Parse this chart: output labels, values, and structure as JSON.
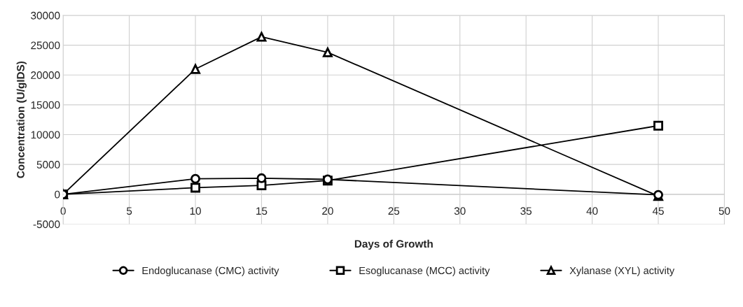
{
  "chart_data": {
    "type": "line",
    "xlabel": "Days of Growth",
    "ylabel": "Concentration (U/gIDS)",
    "x": [
      0,
      10,
      15,
      20,
      45
    ],
    "series": [
      {
        "name": "Endoglucanase (CMC) activity",
        "color": "#000000",
        "marker": "circle",
        "values": [
          0,
          2600,
          2700,
          2500,
          -100
        ]
      },
      {
        "name": "Esoglucanase (MCC) activity",
        "color": "#000000",
        "marker": "square",
        "values": [
          0,
          1100,
          1500,
          2300,
          11500
        ]
      },
      {
        "name": "Xylanase (XYL) activity",
        "color": "#000000",
        "marker": "triangle",
        "values": [
          0,
          21000,
          26400,
          23800,
          -300
        ]
      }
    ],
    "xlim": [
      0,
      50
    ],
    "xticks": [
      0,
      5,
      10,
      15,
      20,
      25,
      30,
      35,
      40,
      45,
      50
    ],
    "ylim": [
      -5000,
      30000
    ],
    "yticks": [
      -5000,
      0,
      5000,
      10000,
      15000,
      20000,
      25000,
      30000
    ],
    "grid": true,
    "legend": "bottom",
    "line_style": "solid"
  }
}
